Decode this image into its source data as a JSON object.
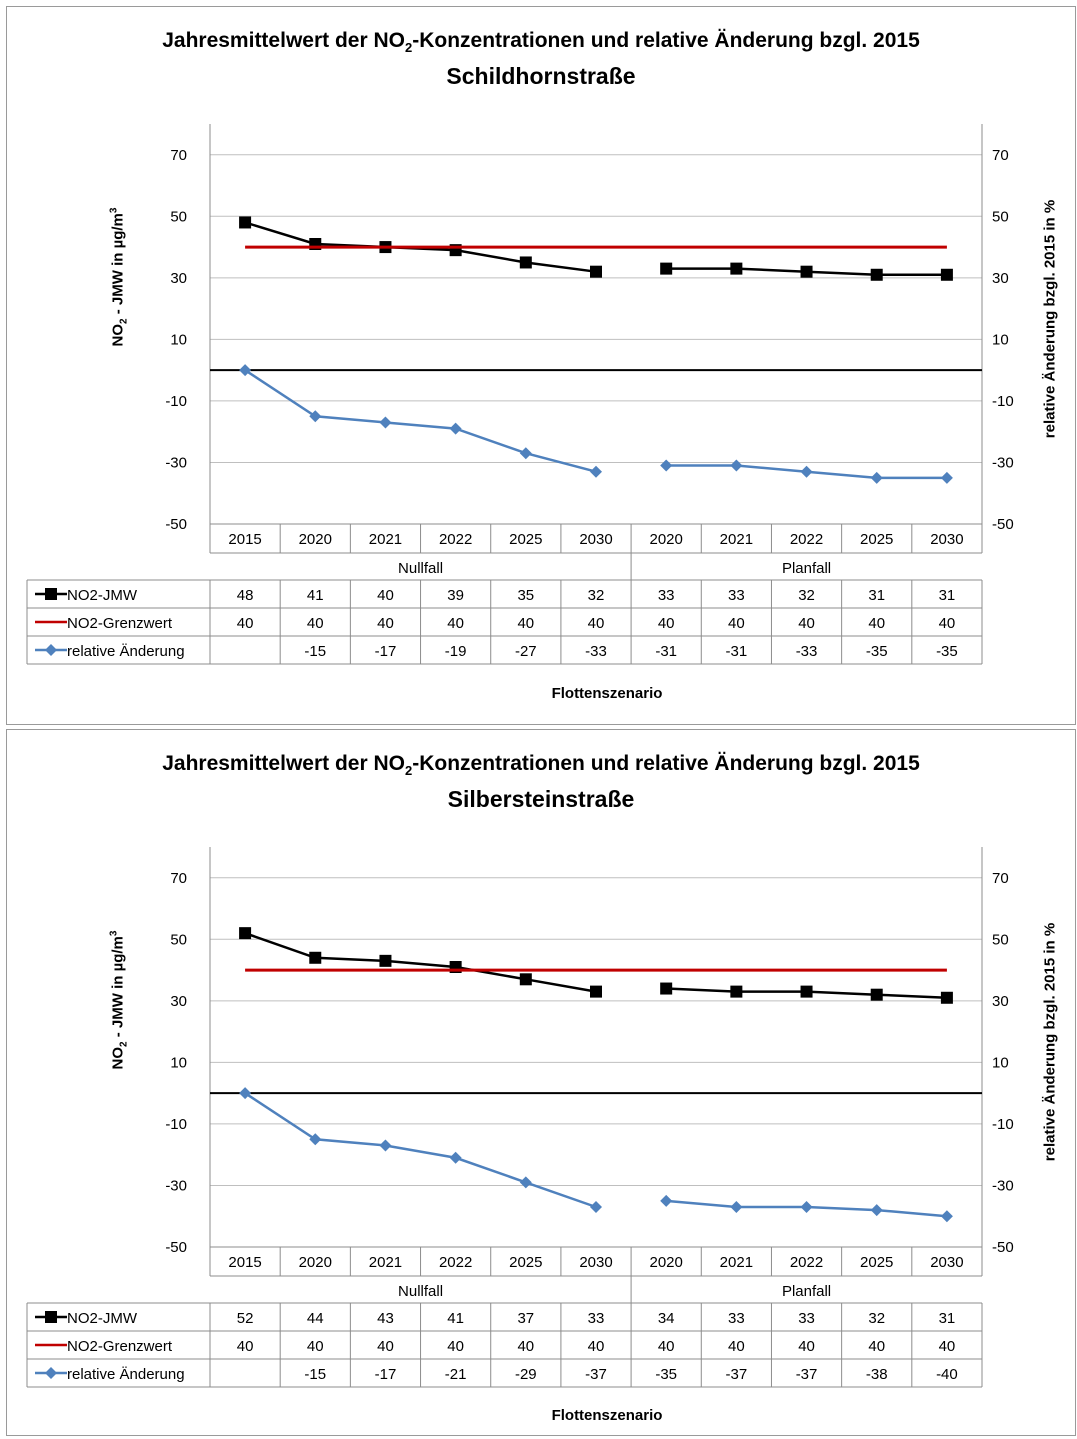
{
  "charts": [
    {
      "title_prefix": "Jahresmittelwert der NO",
      "title_sub": "2",
      "title_suffix": "-Konzentrationen und relative Änderung bzgl. 2015",
      "subtitle": "Schildhornstraße",
      "ylabel_left_prefix": "NO",
      "ylabel_left_sub": "2",
      "ylabel_left_mid": " - JMW in µg/m",
      "ylabel_left_sup": "3",
      "ylabel_right": "relative Änderung bzgl. 2015 in %",
      "xlabel": "Flottenszenario"
    },
    {
      "title_prefix": "Jahresmittelwert der NO",
      "title_sub": "2",
      "title_suffix": "-Konzentrationen und relative Änderung bzgl. 2015",
      "subtitle": "Silbersteinstraße",
      "ylabel_left_prefix": "NO",
      "ylabel_left_sub": "2",
      "ylabel_left_mid": " - JMW in µg/m",
      "ylabel_left_sup": "3",
      "ylabel_right": "relative Änderung bzgl. 2015 in %",
      "xlabel": "Flottenszenario"
    }
  ],
  "chart_data": [
    {
      "type": "line",
      "title": "Jahresmittelwert der NO2-Konzentrationen und relative Änderung bzgl. 2015",
      "subtitle": "Schildhornstraße",
      "xlabel": "Flottenszenario",
      "ylabel": "NO2 - JMW in µg/m3",
      "ylabel_right": "relative Änderung bzgl. 2015 in %",
      "ylim": [
        -50,
        80
      ],
      "yticks": [
        -50,
        -30,
        -10,
        10,
        30,
        50,
        70
      ],
      "categories": [
        "2015",
        "2020",
        "2021",
        "2022",
        "2025",
        "2030",
        "2020",
        "2021",
        "2022",
        "2025",
        "2030"
      ],
      "groups": [
        {
          "name": "Nullfall",
          "span": 6
        },
        {
          "name": "Planfall",
          "span": 5
        }
      ],
      "legend_placement": "data-table",
      "grid": true,
      "series": [
        {
          "name": "NO2-JMW",
          "color": "#000000",
          "marker": "square",
          "values": [
            48,
            41,
            40,
            39,
            35,
            32,
            33,
            33,
            32,
            31,
            31
          ]
        },
        {
          "name": "NO2-Grenzwert",
          "color": "#c00000",
          "marker": "none",
          "values": [
            40,
            40,
            40,
            40,
            40,
            40,
            40,
            40,
            40,
            40,
            40
          ]
        },
        {
          "name": "relative Änderung",
          "color": "#4f81bd",
          "marker": "diamond",
          "values": [
            0,
            -15,
            -17,
            -19,
            -27,
            -33,
            -31,
            -31,
            -33,
            -35,
            -35
          ],
          "table_values": [
            null,
            -15,
            -17,
            -19,
            -27,
            -33,
            -31,
            -31,
            -33,
            -35,
            -35
          ]
        }
      ]
    },
    {
      "type": "line",
      "title": "Jahresmittelwert der NO2-Konzentrationen und relative Änderung bzgl. 2015",
      "subtitle": "Silbersteinstraße",
      "xlabel": "Flottenszenario",
      "ylabel": "NO2 - JMW in µg/m3",
      "ylabel_right": "relative Änderung bzgl. 2015 in %",
      "ylim": [
        -50,
        80
      ],
      "yticks": [
        -50,
        -30,
        -10,
        10,
        30,
        50,
        70
      ],
      "categories": [
        "2015",
        "2020",
        "2021",
        "2022",
        "2025",
        "2030",
        "2020",
        "2021",
        "2022",
        "2025",
        "2030"
      ],
      "groups": [
        {
          "name": "Nullfall",
          "span": 6
        },
        {
          "name": "Planfall",
          "span": 5
        }
      ],
      "legend_placement": "data-table",
      "grid": true,
      "series": [
        {
          "name": "NO2-JMW",
          "color": "#000000",
          "marker": "square",
          "values": [
            52,
            44,
            43,
            41,
            37,
            33,
            34,
            33,
            33,
            32,
            31
          ]
        },
        {
          "name": "NO2-Grenzwert",
          "color": "#c00000",
          "marker": "none",
          "values": [
            40,
            40,
            40,
            40,
            40,
            40,
            40,
            40,
            40,
            40,
            40
          ]
        },
        {
          "name": "relative Änderung",
          "color": "#4f81bd",
          "marker": "diamond",
          "values": [
            0,
            -15,
            -17,
            -21,
            -29,
            -37,
            -35,
            -37,
            -37,
            -38,
            -40
          ],
          "table_values": [
            null,
            -15,
            -17,
            -21,
            -29,
            -37,
            -35,
            -37,
            -37,
            -38,
            -40
          ]
        }
      ]
    }
  ]
}
